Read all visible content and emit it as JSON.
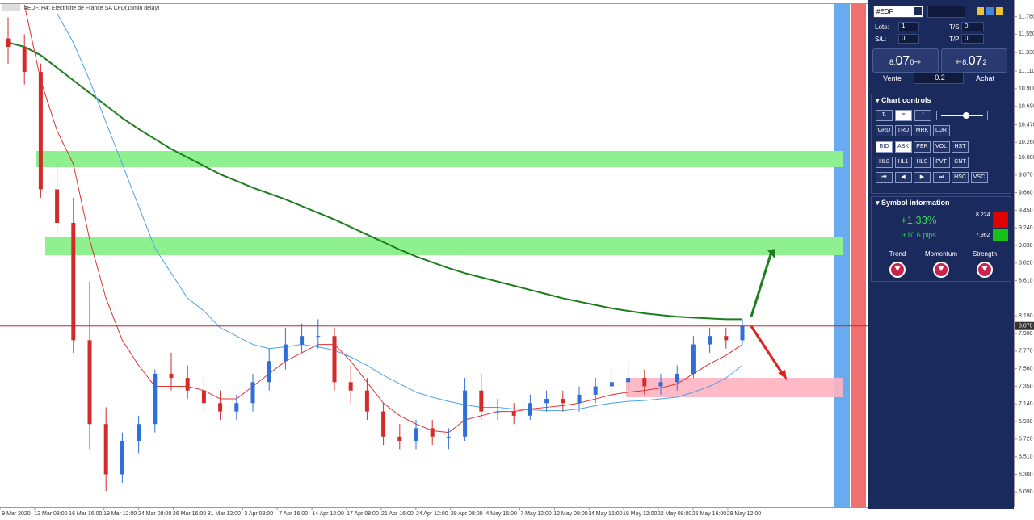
{
  "window": {
    "title": "#EDF, H4: Electricite de France SA CFD(15min delay)"
  },
  "chart": {
    "type": "candlestick",
    "ylim": [
      5.91,
      11.91
    ],
    "yticks": [
      {
        "value": 11.76,
        "label": "11.760"
      },
      {
        "value": 11.55,
        "label": "11.550"
      },
      {
        "value": 11.33,
        "label": "11.330"
      },
      {
        "value": 11.11,
        "label": "11.110"
      },
      {
        "value": 10.9,
        "label": "10.900"
      },
      {
        "value": 10.69,
        "label": "10.690"
      },
      {
        "value": 10.47,
        "label": "10.470"
      },
      {
        "value": 10.26,
        "label": "10.260"
      },
      {
        "value": 10.08,
        "label": "10.080"
      },
      {
        "value": 9.87,
        "label": "9.870"
      },
      {
        "value": 9.66,
        "label": "9.660"
      },
      {
        "value": 9.45,
        "label": "9.450"
      },
      {
        "value": 9.24,
        "label": "9.240"
      },
      {
        "value": 9.03,
        "label": "9.030"
      },
      {
        "value": 8.82,
        "label": "8.820"
      },
      {
        "value": 8.61,
        "label": "8.610"
      },
      {
        "value": 8.19,
        "label": "8.190"
      },
      {
        "value": 7.98,
        "label": "7.980"
      },
      {
        "value": 7.77,
        "label": "7.770"
      },
      {
        "value": 7.56,
        "label": "7.560"
      },
      {
        "value": 7.35,
        "label": "7.350"
      },
      {
        "value": 7.14,
        "label": "7.140"
      },
      {
        "value": 6.93,
        "label": "6.930"
      },
      {
        "value": 6.72,
        "label": "6.720"
      },
      {
        "value": 6.51,
        "label": "6.510"
      },
      {
        "value": 6.3,
        "label": "6.300"
      },
      {
        "value": 6.09,
        "label": "6.090"
      }
    ],
    "current_price": {
      "value": 8.07,
      "label": "8.070"
    },
    "x_labels": [
      "9 Mar 2020",
      "12 Mar 08:00",
      "16 Mar 16:00",
      "19 Mar 12:00",
      "24 Mar 08:00",
      "26 Mar 16:00",
      "31 Mar 12:00",
      "3 Apr 08:00",
      "7 Apr 16:00",
      "14 Apr 12:00",
      "17 Apr 08:00",
      "21 Apr 16:00",
      "24 Apr 12:00",
      "29 Apr 08:00",
      "4 May 16:00",
      "7 May 12:00",
      "12 May 08:00",
      "14 May 16:00",
      "19 May 12:00",
      "22 May 08:00",
      "26 May 16:00",
      "29 May 12:00"
    ],
    "open": [
      11.5,
      11.4,
      11.1,
      9.7,
      9.3,
      7.9,
      6.9,
      6.3,
      6.7,
      6.9,
      7.5,
      7.45,
      7.3,
      7.15,
      7.05,
      7.15,
      7.4,
      7.65,
      7.85,
      7.95,
      7.95,
      7.4,
      7.3,
      7.05,
      6.75,
      6.7,
      6.85,
      6.75,
      6.75,
      7.3,
      7.05,
      7.05,
      7.0,
      7.15,
      7.2,
      7.15,
      7.25,
      7.35,
      7.4,
      7.45,
      7.35,
      7.4,
      7.5,
      7.85,
      7.95,
      7.9
    ],
    "high": [
      11.75,
      11.55,
      11.2,
      10.0,
      9.6,
      8.6,
      7.1,
      6.8,
      7.0,
      7.55,
      7.75,
      7.6,
      7.45,
      7.3,
      7.25,
      7.5,
      7.8,
      8.05,
      8.1,
      8.15,
      8.05,
      7.6,
      7.45,
      7.15,
      6.9,
      6.95,
      6.95,
      6.85,
      7.45,
      7.5,
      7.2,
      7.15,
      7.25,
      7.3,
      7.3,
      7.35,
      7.45,
      7.55,
      7.65,
      7.55,
      7.5,
      7.6,
      7.95,
      8.05,
      8.05,
      8.15
    ],
    "low": [
      11.2,
      10.95,
      9.6,
      9.15,
      7.75,
      6.6,
      6.1,
      6.2,
      6.55,
      6.8,
      7.3,
      7.2,
      7.05,
      6.95,
      6.95,
      7.05,
      7.3,
      7.55,
      7.75,
      7.8,
      7.3,
      7.15,
      6.95,
      6.65,
      6.6,
      6.6,
      6.65,
      6.6,
      6.7,
      6.95,
      6.95,
      6.9,
      6.95,
      7.05,
      7.05,
      7.05,
      7.15,
      7.25,
      7.3,
      7.25,
      7.25,
      7.3,
      7.45,
      7.75,
      7.8,
      7.85
    ],
    "close": [
      11.4,
      11.1,
      9.7,
      9.3,
      7.9,
      6.9,
      6.3,
      6.7,
      6.9,
      7.5,
      7.45,
      7.3,
      7.15,
      7.05,
      7.15,
      7.4,
      7.65,
      7.85,
      7.95,
      7.95,
      7.4,
      7.3,
      7.05,
      6.75,
      6.7,
      6.85,
      6.75,
      6.75,
      7.3,
      7.05,
      7.05,
      7.0,
      7.15,
      7.2,
      7.15,
      7.25,
      7.35,
      7.4,
      7.45,
      7.35,
      7.4,
      7.5,
      7.85,
      7.95,
      7.9,
      8.07
    ],
    "up_color": "#2f6fd6",
    "down_color": "#d42a2a",
    "series": [
      {
        "color": "#1e7d1e",
        "values": [
          11.45,
          11.4,
          11.3,
          11.15,
          11.0,
          10.85,
          10.7,
          10.55,
          10.42,
          10.3,
          10.18,
          10.08,
          9.98,
          9.88,
          9.8,
          9.72,
          9.65,
          9.58,
          9.5,
          9.42,
          9.34,
          9.25,
          9.16,
          9.07,
          8.98,
          8.9,
          8.83,
          8.76,
          8.7,
          8.65,
          8.6,
          8.55,
          8.5,
          8.45,
          8.4,
          8.36,
          8.32,
          8.28,
          8.25,
          8.22,
          8.2,
          8.18,
          8.17,
          8.16,
          8.15,
          8.15
        ]
      },
      {
        "color": "#e03030",
        "values": [
          null,
          11.9,
          11.0,
          10.4,
          10.0,
          9.1,
          8.4,
          7.9,
          7.6,
          7.35,
          7.35,
          7.35,
          7.3,
          7.2,
          7.2,
          7.35,
          7.5,
          7.65,
          7.75,
          7.85,
          7.85,
          7.65,
          7.4,
          7.15,
          7.0,
          6.9,
          6.82,
          6.8,
          6.95,
          7.0,
          7.05,
          7.05,
          7.08,
          7.1,
          7.12,
          7.15,
          7.2,
          7.25,
          7.28,
          7.3,
          7.33,
          7.38,
          7.5,
          7.62,
          7.72,
          7.85
        ]
      },
      {
        "color": "#4aa3e8",
        "values": [
          null,
          null,
          null,
          11.8,
          11.45,
          11.0,
          10.5,
          10.0,
          9.5,
          9.0,
          8.7,
          8.4,
          8.25,
          8.05,
          7.95,
          7.85,
          7.8,
          7.82,
          7.85,
          7.82,
          7.78,
          7.7,
          7.6,
          7.48,
          7.38,
          7.28,
          7.22,
          7.17,
          7.13,
          7.1,
          7.1,
          7.08,
          7.07,
          7.06,
          7.06,
          7.08,
          7.12,
          7.15,
          7.17,
          7.18,
          7.2,
          7.22,
          7.28,
          7.35,
          7.45,
          7.6
        ]
      }
    ]
  },
  "panel": {
    "symbol": "#EDF",
    "lots_label": "Lots:",
    "lots": "1",
    "ts_label": "T/S:",
    "ts": "0",
    "sl_label": "S/L:",
    "sl": "0",
    "tp_label": "T/P:",
    "tp": "0",
    "sell": {
      "big": "8.",
      "mid": "07",
      "small": "0",
      "label": "Vente"
    },
    "buy": {
      "big": "8.",
      "mid": "07",
      "small": "2",
      "label": "Achat"
    },
    "volume": "0.2",
    "chart_controls": {
      "title": "Chart controls",
      "rows": [
        [
          "GRD",
          "TRD",
          "MRK",
          "LDR"
        ],
        [
          "BID",
          "ASK",
          "PER",
          "VOL",
          "HST"
        ],
        [
          "HL0",
          "HL1",
          "HLS",
          "PVT",
          "CNT"
        ],
        [
          "HSC",
          "VSC"
        ]
      ]
    },
    "symbol_info": {
      "title": "Symbol information",
      "change": "+1.33%",
      "pips": "+10.6 pips",
      "high": "8.224",
      "low": "7.962",
      "indicators": [
        "Trend",
        "Momentum",
        "Strength"
      ]
    }
  }
}
